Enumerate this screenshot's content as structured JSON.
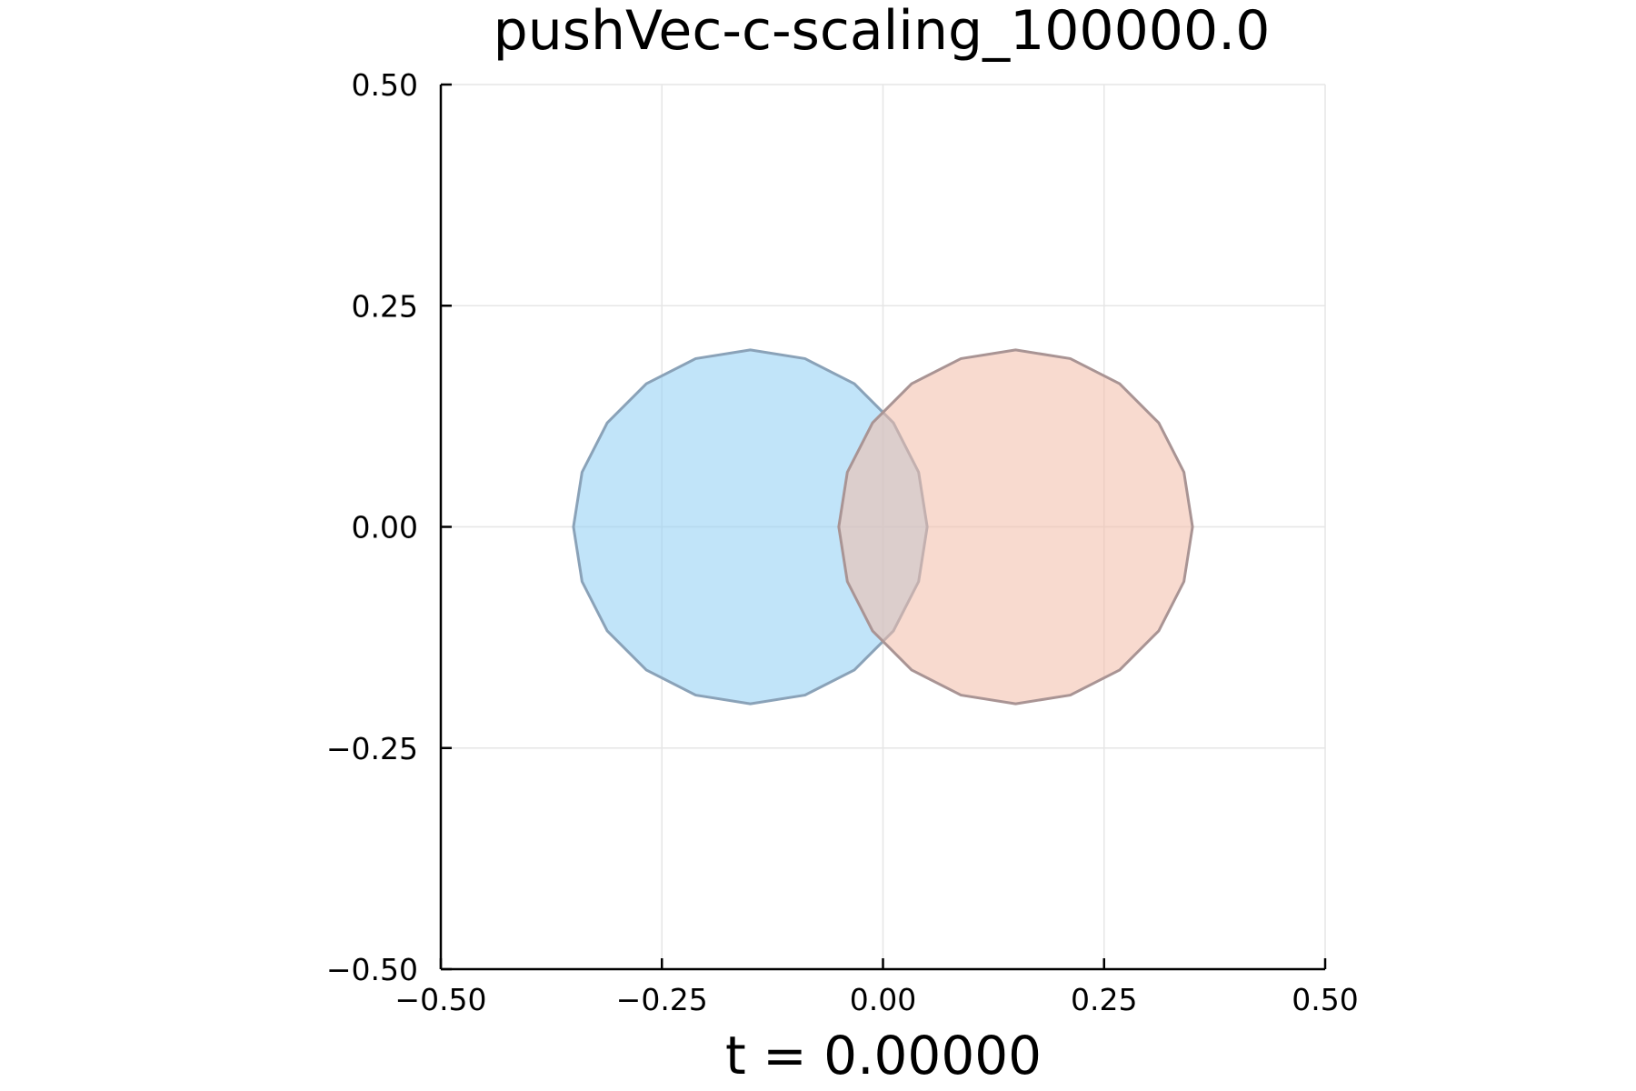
{
  "chart_data": {
    "type": "area",
    "title": "pushVec-c-scaling_100000.0",
    "xlabel": "t = 0.00000",
    "ylabel": "",
    "xlim": [
      -0.5,
      0.5
    ],
    "ylim": [
      -0.5,
      0.5
    ],
    "x_ticks": [
      -0.5,
      -0.25,
      0.0,
      0.25,
      0.5
    ],
    "y_ticks": [
      -0.5,
      -0.25,
      0.0,
      0.25,
      0.5
    ],
    "x_tick_labels": [
      "−0.50",
      "−0.25",
      "0.00",
      "0.25",
      "0.50"
    ],
    "y_tick_labels": [
      "−0.50",
      "−0.25",
      "0.00",
      "0.25",
      "0.50"
    ],
    "grid": true,
    "legend": "none",
    "series": [
      {
        "fill": "#8ecdf4",
        "stroke": "#8aa2b8",
        "points": [
          [
            -0.35,
            0.0
          ],
          [
            -0.3403,
            0.0618
          ],
          [
            -0.3118,
            0.1176
          ],
          [
            -0.2676,
            0.1618
          ],
          [
            -0.2118,
            0.1902
          ],
          [
            -0.15,
            0.2
          ],
          [
            -0.0882,
            0.1902
          ],
          [
            -0.0324,
            0.1618
          ],
          [
            0.0118,
            0.1176
          ],
          [
            0.0403,
            0.0618
          ],
          [
            0.05,
            0.0
          ],
          [
            0.0403,
            -0.0618
          ],
          [
            0.0118,
            -0.1176
          ],
          [
            -0.0324,
            -0.1618
          ],
          [
            -0.0882,
            -0.1902
          ],
          [
            -0.15,
            -0.2
          ],
          [
            -0.2118,
            -0.1902
          ],
          [
            -0.2676,
            -0.1618
          ],
          [
            -0.3118,
            -0.1176
          ],
          [
            -0.3403,
            -0.0618
          ]
        ]
      },
      {
        "fill": "#f2bba8",
        "stroke": "#a99494",
        "points": [
          [
            0.35,
            0.0
          ],
          [
            0.3403,
            0.0618
          ],
          [
            0.3118,
            0.1176
          ],
          [
            0.2676,
            0.1618
          ],
          [
            0.2118,
            0.1902
          ],
          [
            0.15,
            0.2
          ],
          [
            0.0882,
            0.1902
          ],
          [
            0.0324,
            0.1618
          ],
          [
            -0.0118,
            0.1176
          ],
          [
            -0.0403,
            0.0618
          ],
          [
            -0.05,
            0.0
          ],
          [
            -0.0403,
            -0.0618
          ],
          [
            -0.0118,
            -0.1176
          ],
          [
            0.0324,
            -0.1618
          ],
          [
            0.0882,
            -0.1902
          ],
          [
            0.15,
            -0.2
          ],
          [
            0.2118,
            -0.1902
          ],
          [
            0.2676,
            -0.1618
          ],
          [
            0.3118,
            -0.1176
          ],
          [
            0.3403,
            -0.0618
          ]
        ]
      }
    ]
  }
}
